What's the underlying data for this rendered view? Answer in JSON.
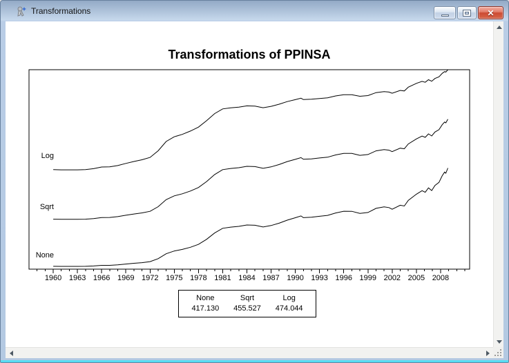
{
  "window": {
    "title": "Transformations",
    "controls": {
      "minimize": "minimize",
      "maximize": "maximize",
      "close": "close"
    }
  },
  "colors": {
    "line": "#000000",
    "titlebar_top": "#93aac6",
    "titlebar_bottom": "#c6d8ec",
    "close_button": "#cc4b33",
    "border_glow": "#57dcf2",
    "scrollbar_track": "#f2f2f0"
  },
  "chart_data": {
    "type": "line",
    "title": "Transformations of PPINSA",
    "x_axis": {
      "labeled_ticks": [
        1960,
        1963,
        1966,
        1969,
        1972,
        1975,
        1978,
        1981,
        1984,
        1987,
        1990,
        1993,
        1996,
        1999,
        2002,
        2005,
        2008
      ],
      "minor_tick_start": 1958,
      "minor_tick_end": 2011,
      "domain": [
        1957.0,
        2011.6
      ]
    },
    "grid": false,
    "series": [
      {
        "label": "Log",
        "transform": "log",
        "band": [
          0.0,
          0.502
        ]
      },
      {
        "label": "Sqrt",
        "transform": "sqrt",
        "band": [
          0.248,
          0.75
        ]
      },
      {
        "label": "None",
        "transform": "none",
        "band": [
          0.493,
          0.986
        ]
      }
    ],
    "base_series": {
      "name": "PPINSA",
      "x": [
        1960,
        1961,
        1962,
        1963,
        1964,
        1965,
        1966,
        1967,
        1968,
        1969,
        1970,
        1971,
        1972,
        1973,
        1974,
        1975,
        1976,
        1977,
        1978,
        1979,
        1980,
        1981,
        1982,
        1983,
        1984,
        1985,
        1986,
        1987,
        1988,
        1989,
        1990,
        1990.7,
        1991,
        1992,
        1993,
        1994,
        1995,
        1996,
        1997,
        1998,
        1999,
        2000,
        2001,
        2001.6,
        2002,
        2003,
        2003.5,
        2004,
        2005,
        2005.7,
        2006.1,
        2006.5,
        2006.9,
        2007.3,
        2007.8,
        2008.2,
        2008.5,
        2008.65,
        2008.9
      ],
      "values": [
        31.7,
        31.6,
        31.6,
        31.6,
        31.7,
        32.3,
        33.3,
        33.4,
        34.2,
        35.6,
        36.9,
        38.1,
        39.8,
        45.0,
        53.5,
        58.4,
        61.1,
        64.9,
        69.9,
        78.7,
        89.8,
        98.0,
        100.0,
        101.3,
        103.7,
        103.2,
        100.2,
        102.8,
        106.9,
        112.2,
        116.3,
        119.5,
        116.5,
        117.2,
        118.9,
        120.4,
        124.7,
        127.7,
        127.6,
        123.9,
        125.5,
        132.7,
        135.2,
        134.0,
        131.1,
        138.1,
        136.8,
        146.7,
        157.4,
        163.5,
        160.8,
        168.5,
        163.8,
        172.6,
        178.0,
        189.6,
        196.0,
        194.0,
        203.0
      ]
    },
    "footer_table": {
      "columns": [
        "None",
        "Sqrt",
        "Log"
      ],
      "values": [
        "417.130",
        "455.527",
        "474.044"
      ]
    }
  }
}
